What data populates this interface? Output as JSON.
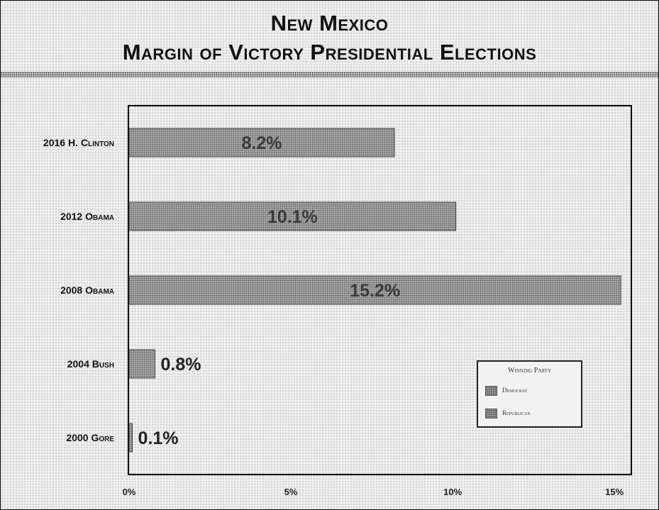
{
  "chart_data": {
    "type": "bar",
    "orientation": "horizontal",
    "title": "New Mexico",
    "subtitle": "Margin of Victory Presidential Elections",
    "categories": [
      "2016 H. Clinton",
      "2012 Obama",
      "2008 Obama",
      "2004 Bush",
      "2000 Gore"
    ],
    "values": [
      8.2,
      10.1,
      15.2,
      0.8,
      0.1
    ],
    "winning_party": [
      "Democrat",
      "Democrat",
      "Democrat",
      "Republican",
      "Democrat"
    ],
    "data_labels": [
      "8.2%",
      "10.1%",
      "15.2%",
      "0.8%",
      "0.1%"
    ],
    "x_ticks": [
      0,
      5,
      10,
      15
    ],
    "x_tick_labels": [
      "0%",
      "5%",
      "10%",
      "15%"
    ],
    "xlim": [
      0,
      15.5
    ],
    "grid": false,
    "legend": {
      "title": "Winning Party",
      "entries": [
        "Democrat",
        "Republican"
      ],
      "placement": "bottom-right"
    }
  }
}
